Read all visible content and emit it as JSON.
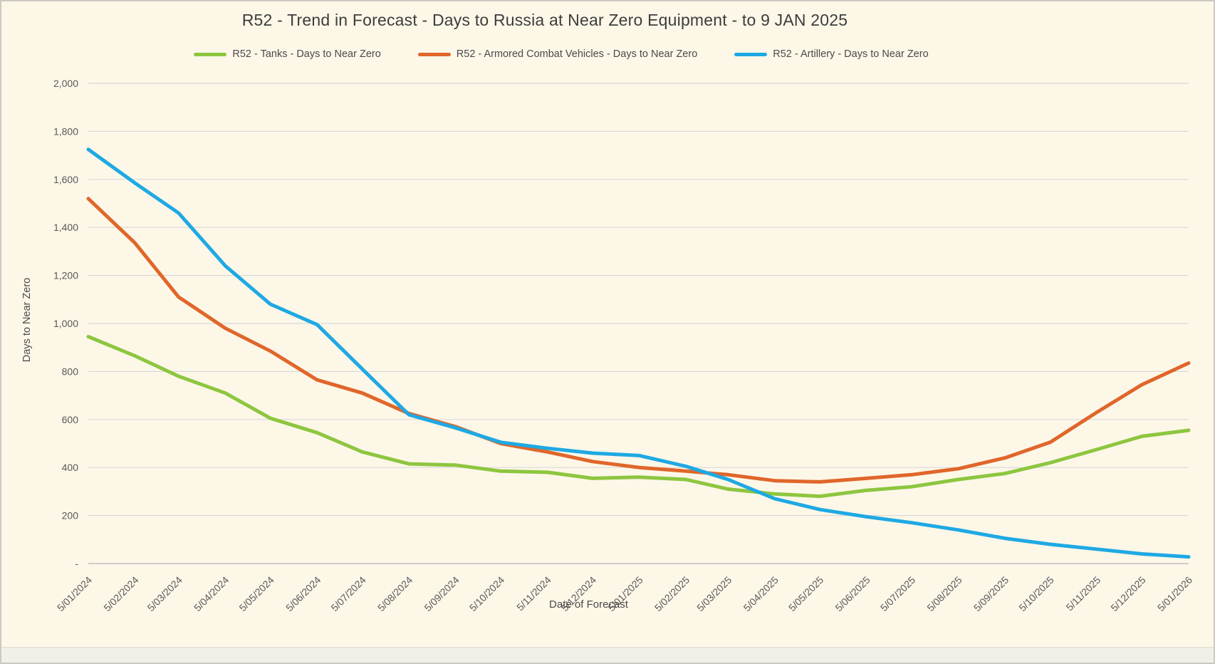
{
  "window": {
    "background_color": "#fdf7e8",
    "border_color": "#cbc9c2"
  },
  "chart_data": {
    "type": "line",
    "title": "R52 - Trend in Forecast - Days to Russia at Near Zero Equipment - to 9 JAN 2025",
    "xlabel": "Date of Forecast",
    "ylabel": "Days to Near Zero",
    "ylim": [
      0,
      2000
    ],
    "y_tick_step": 200,
    "grid": true,
    "legend_position": "top-center",
    "y_ticks_top_down": [
      "2,000",
      "1,800",
      "1,600",
      "1,400",
      "1,200",
      "1,000",
      "800",
      "600",
      "400",
      "200",
      "-"
    ],
    "categories": [
      "5/01/2024",
      "5/02/2024",
      "5/03/2024",
      "5/04/2024",
      "5/05/2024",
      "5/06/2024",
      "5/07/2024",
      "5/08/2024",
      "5/09/2024",
      "5/10/2024",
      "5/11/2024",
      "5/12/2024",
      "5/01/2025",
      "5/02/2025",
      "5/03/2025",
      "5/04/2025",
      "5/05/2025",
      "5/06/2025",
      "5/07/2025",
      "5/08/2025",
      "5/09/2025",
      "5/10/2025",
      "5/11/2025",
      "5/12/2025",
      "5/01/2026"
    ],
    "series": [
      {
        "id": "tanks",
        "name": "R52 - Tanks - Days to Near Zero",
        "color": "#8dc63f",
        "values": [
          945,
          865,
          780,
          710,
          605,
          545,
          465,
          415,
          410,
          385,
          380,
          355,
          360,
          350,
          310,
          290,
          280,
          305,
          320,
          350,
          375,
          420,
          475,
          530,
          555
        ]
      },
      {
        "id": "acv",
        "name": "R52 - Armored Combat Vehicles - Days to Near Zero",
        "color": "#e0662a",
        "values": [
          1520,
          1335,
          1110,
          980,
          885,
          765,
          710,
          625,
          570,
          500,
          465,
          425,
          400,
          385,
          370,
          345,
          340,
          355,
          370,
          395,
          440,
          505,
          630,
          745,
          835
        ]
      },
      {
        "id": "artillery",
        "name": "R52 - Artillery - Days to Near Zero",
        "color": "#1ea9e3",
        "values": [
          1725,
          1585,
          1460,
          1240,
          1080,
          995,
          810,
          620,
          565,
          505,
          480,
          460,
          450,
          405,
          350,
          270,
          225,
          195,
          170,
          140,
          105,
          80,
          60,
          40,
          28
        ]
      }
    ],
    "colors": {
      "gridline": "#d9d9d9",
      "axis_line": "#bfbfbf",
      "tick_text": "#595959",
      "title_text": "#3d3d3d"
    }
  }
}
